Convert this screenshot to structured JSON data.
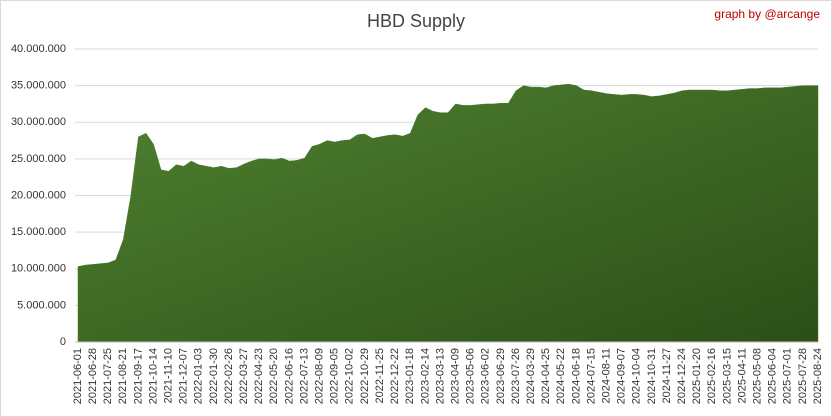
{
  "chart_data": {
    "type": "area",
    "title": "HBD Supply",
    "annotation": "graph by @arcange",
    "color": "#4a7a2c",
    "grid": true,
    "categories": [
      "2021-06-01",
      null,
      "2021-06-28",
      null,
      "2021-07-25",
      null,
      "2021-08-21",
      null,
      "2021-09-17",
      null,
      "2021-10-14",
      null,
      "2021-11-10",
      null,
      "2021-12-07",
      null,
      "2022-01-03",
      null,
      "2022-01-30",
      null,
      "2022-02-26",
      null,
      "2022-03-27",
      null,
      "2022-04-23",
      null,
      "2022-05-20",
      null,
      "2022-06-16",
      null,
      "2022-07-13",
      null,
      "2022-08-09",
      null,
      "2022-09-05",
      null,
      "2022-10-02",
      null,
      "2022-10-29",
      null,
      "2022-11-25",
      null,
      "2022-12-22",
      null,
      "2023-01-18",
      null,
      "2023-02-14",
      null,
      "2023-03-13",
      null,
      "2023-04-09",
      null,
      "2023-05-06",
      null,
      "2023-06-02",
      null,
      "2023-06-29",
      null,
      "2023-07-26",
      null,
      "2024-03-29",
      null,
      "2024-04-25",
      null,
      "2024-05-22",
      null,
      "2024-06-18",
      null,
      "2024-07-15",
      null,
      "2024-08-11",
      null,
      "2024-09-07",
      null,
      "2024-10-04",
      null,
      "2024-10-31",
      null,
      "2024-11-27",
      null,
      "2024-12-24",
      null,
      "2025-01-20",
      null,
      "2025-02-16",
      null,
      "2025-03-15",
      null,
      "2025-04-11",
      null,
      "2025-05-08",
      null,
      "2025-06-04",
      null,
      "2025-07-01",
      null,
      "2025-07-28",
      null,
      "2025-08-24"
    ],
    "values": [
      10300000,
      10500000,
      10600000,
      10700000,
      10800000,
      11200000,
      14000000,
      20000000,
      28000000,
      28500000,
      27000000,
      23500000,
      23300000,
      24200000,
      24000000,
      24700000,
      24200000,
      24000000,
      23800000,
      24000000,
      23700000,
      23800000,
      24300000,
      24700000,
      25000000,
      25000000,
      24900000,
      25100000,
      24700000,
      24800000,
      25100000,
      26700000,
      27000000,
      27500000,
      27300000,
      27500000,
      27600000,
      28300000,
      28400000,
      27800000,
      28000000,
      28200000,
      28300000,
      28100000,
      28500000,
      31000000,
      32000000,
      31500000,
      31300000,
      31300000,
      32500000,
      32300000,
      32300000,
      32400000,
      32500000,
      32500000,
      32600000,
      32600000,
      34300000,
      35000000,
      34800000,
      34800000,
      34700000,
      35000000,
      35100000,
      35200000,
      35000000,
      34400000,
      34300000,
      34100000,
      33900000,
      33800000,
      33700000,
      33800000,
      33800000,
      33700000,
      33500000,
      33600000,
      33800000,
      34000000,
      34300000,
      34400000,
      34400000,
      34400000,
      34400000,
      34300000,
      34300000,
      34400000,
      34500000,
      34600000,
      34600000,
      34700000,
      34700000,
      34700000,
      34800000,
      34900000,
      35000000,
      35000000,
      35000000
    ],
    "ylim": [
      0,
      40000000
    ],
    "yticks": [
      0,
      {
        "value": 5000000,
        "label": "5.000.000"
      },
      {
        "value": 10000000,
        "label": "10.000.000"
      },
      {
        "value": 15000000,
        "label": "15.000.000"
      },
      {
        "value": 20000000,
        "label": "20.000.000"
      },
      {
        "value": 25000000,
        "label": "25.000.000"
      },
      {
        "value": 30000000,
        "label": "30.000.000"
      },
      {
        "value": 35000000,
        "label": "35.000.000"
      },
      {
        "value": 40000000,
        "label": "40.000.000"
      }
    ]
  }
}
